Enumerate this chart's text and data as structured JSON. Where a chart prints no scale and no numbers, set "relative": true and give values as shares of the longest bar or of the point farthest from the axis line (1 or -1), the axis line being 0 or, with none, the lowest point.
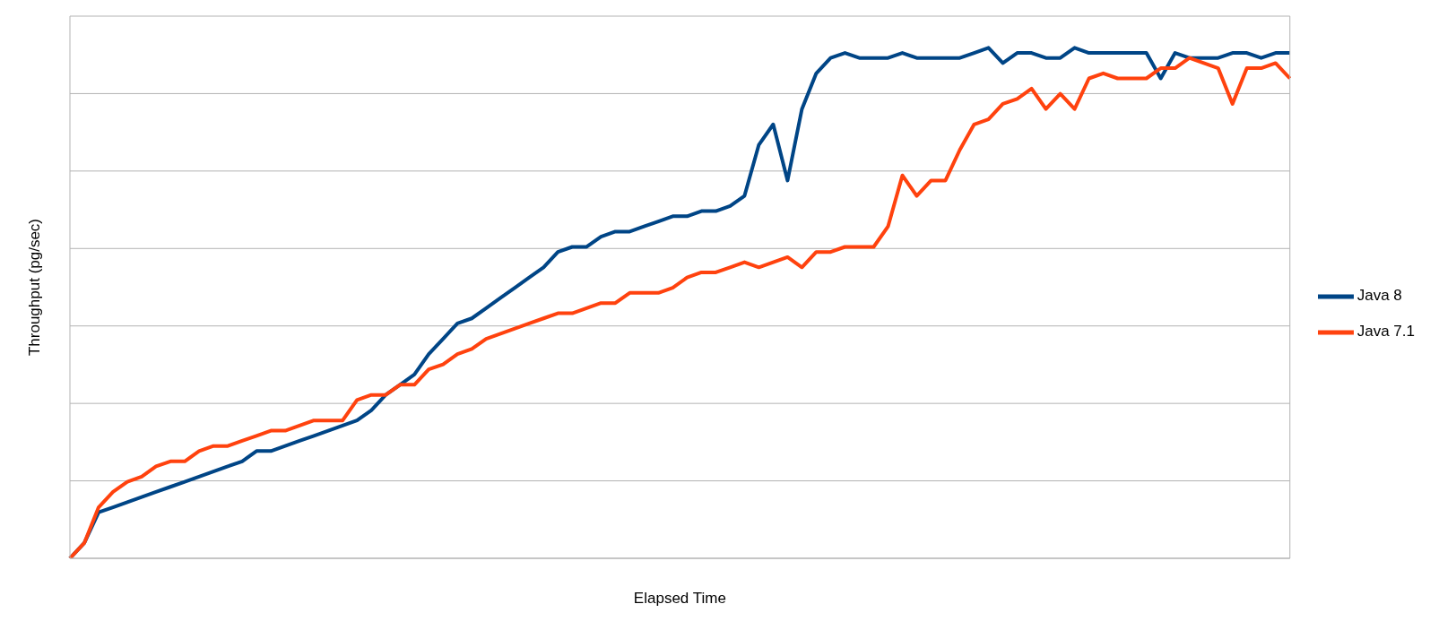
{
  "chart_data": {
    "type": "line",
    "relative": true,
    "xlabel": "Elapsed Time",
    "ylabel": "Throughput (pg/sec)",
    "grid": "y",
    "legend": "right",
    "categories": [
      null,
      null,
      null,
      null,
      null,
      null,
      null,
      null,
      null,
      null,
      null,
      null,
      null,
      null,
      null,
      null,
      null,
      null,
      null,
      null,
      null,
      null,
      null,
      null,
      null,
      null,
      null,
      null,
      null,
      null,
      null,
      null,
      null,
      null,
      null,
      null,
      null,
      null,
      null,
      null,
      null,
      null,
      null,
      null,
      null,
      null,
      null,
      null,
      null,
      null,
      null,
      null,
      null,
      null,
      null,
      null,
      null,
      null,
      null,
      null,
      null,
      null,
      null,
      null,
      null,
      null,
      null,
      null,
      null,
      null,
      null,
      null,
      null,
      null,
      null,
      null,
      null,
      null,
      null,
      null,
      null,
      null,
      null,
      null,
      null,
      null
    ],
    "series": [
      {
        "name": "Java 8",
        "color": "#004586",
        "values": [
          0,
          0.03,
          0.09,
          0.1,
          0.11,
          0.12,
          0.13,
          0.14,
          0.15,
          0.16,
          0.17,
          0.18,
          0.19,
          0.21,
          0.21,
          0.22,
          0.23,
          0.24,
          0.25,
          0.26,
          0.27,
          0.29,
          0.32,
          0.34,
          0.36,
          0.4,
          0.43,
          0.46,
          0.47,
          0.49,
          0.51,
          0.53,
          0.55,
          0.57,
          0.6,
          0.61,
          0.61,
          0.63,
          0.64,
          0.64,
          0.65,
          0.66,
          0.67,
          0.67,
          0.68,
          0.68,
          0.69,
          0.71,
          0.81,
          0.85,
          0.74,
          0.88,
          0.95,
          0.98,
          0.99,
          0.98,
          0.98,
          0.98,
          0.99,
          0.98,
          0.98,
          0.98,
          0.98,
          0.99,
          1.0,
          0.97,
          0.99,
          0.99,
          0.98,
          0.98,
          1.0,
          0.99,
          0.99,
          0.99,
          0.99,
          0.99,
          0.94,
          0.99,
          0.98,
          0.98,
          0.98,
          0.99,
          0.99,
          0.98,
          0.99,
          0.99
        ]
      },
      {
        "name": "Java 7.1",
        "color": "#ff420e",
        "values": [
          0,
          0.03,
          0.1,
          0.13,
          0.15,
          0.16,
          0.18,
          0.19,
          0.19,
          0.21,
          0.22,
          0.22,
          0.23,
          0.24,
          0.25,
          0.25,
          0.26,
          0.27,
          0.27,
          0.27,
          0.31,
          0.32,
          0.32,
          0.34,
          0.34,
          0.37,
          0.38,
          0.4,
          0.41,
          0.43,
          0.44,
          0.45,
          0.46,
          0.47,
          0.48,
          0.48,
          0.49,
          0.5,
          0.5,
          0.52,
          0.52,
          0.52,
          0.53,
          0.55,
          0.56,
          0.56,
          0.57,
          0.58,
          0.57,
          0.58,
          0.59,
          0.57,
          0.6,
          0.6,
          0.61,
          0.61,
          0.61,
          0.65,
          0.75,
          0.71,
          0.74,
          0.74,
          0.8,
          0.85,
          0.86,
          0.89,
          0.9,
          0.92,
          0.88,
          0.91,
          0.88,
          0.94,
          0.95,
          0.94,
          0.94,
          0.94,
          0.96,
          0.96,
          0.98,
          0.97,
          0.96,
          0.89,
          0.96,
          0.96,
          0.97,
          0.94
        ]
      }
    ]
  }
}
